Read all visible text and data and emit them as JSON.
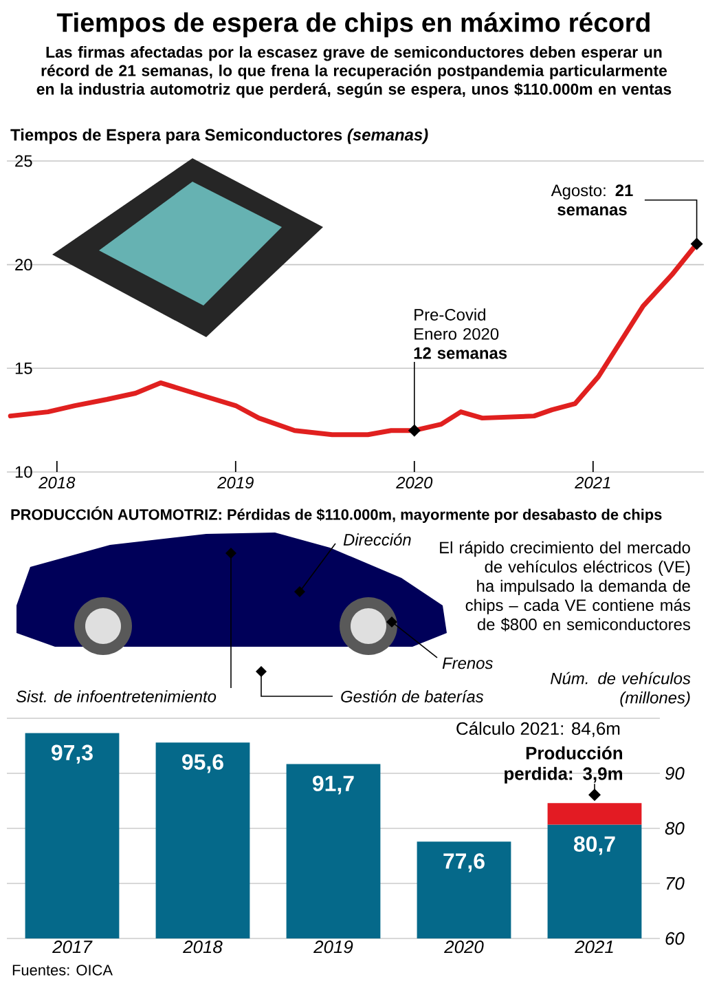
{
  "chart_data": [
    {
      "type": "other",
      "title": "Tiempos de espera de chips en máximo récord",
      "subtitle": "Las firmas afectadas por la escasez grave de semiconductores deben esperar un récord de 21 semanas, lo que frena la recuperación postpandemia particularmente en la industria automotriz que perderá, según se espera, unos $110.000m en ventas"
    },
    {
      "type": "line",
      "title": "Tiempos de Espera para Semiconductores *(semanas)*",
      "x": [
        2017.74,
        2017.95,
        2018.1,
        2018.28,
        2018.44,
        2018.58,
        2018.77,
        2019.0,
        2019.13,
        2019.33,
        2019.54,
        2019.74,
        2019.87,
        2020.0,
        2020.15,
        2020.26,
        2020.38,
        2020.67,
        2020.77,
        2020.9,
        2021.03,
        2021.28,
        2021.44,
        2021.58
      ],
      "values": [
        12.7,
        12.9,
        13.2,
        13.5,
        13.8,
        14.3,
        13.8,
        13.2,
        12.6,
        12.0,
        11.8,
        11.8,
        12.0,
        12,
        12.3,
        12.9,
        12.6,
        12.7,
        13.0,
        13.3,
        14.6,
        18.0,
        19.5,
        21
      ],
      "color": "#e0201f",
      "xlim": [
        2017.72,
        2021.62
      ],
      "ylim": [
        10,
        25
      ],
      "xticks": [
        2018,
        2019,
        2020,
        2021
      ],
      "yticks": [
        10,
        15,
        20,
        25
      ],
      "grid": "y",
      "annotations": [
        {
          "text": "Pre-Covid Enero 2020 **12 semanas**",
          "x": 2020.0,
          "y": 12
        },
        {
          "text": "Agosto: **21 semanas**",
          "x": 2021.58,
          "y": 21
        }
      ]
    },
    {
      "type": "bar",
      "title": "PRODUCCIÓN AUTOMOTRIZ: Pérdidas de $110.000m, mayormente por desabasto de chips",
      "ylabel": "Núm. de vehículos (millones)",
      "categories": [
        "2017",
        "2018",
        "2019",
        "2020",
        "2021"
      ],
      "series": [
        {
          "color": "#05698a",
          "values": [
            97.3,
            95.6,
            91.7,
            77.6,
            80.7
          ],
          "value_labels": [
            "97,3",
            "95,6",
            "91,7",
            "77,6",
            "80,7"
          ]
        },
        {
          "color": "#e31b23",
          "values": [
            null,
            null,
            null,
            null,
            3.9
          ],
          "base": [
            null,
            null,
            null,
            null,
            80.7
          ]
        }
      ],
      "ylim": [
        60,
        100
      ],
      "yticks": [
        60,
        70,
        80,
        90,
        {
          "value": 100,
          "label": null
        }
      ],
      "grid": "y",
      "annotations": [
        "Cálculo 2021: 84,6m",
        {
          "text": "Producción perdida: 3,9m",
          "x": "2021",
          "y": 84.6
        },
        "Dirección",
        "Frenos",
        "Sist. de infoentretenimiento",
        "Gestión de baterías",
        "El rápido crecimiento del mercado de vehículos eléctricos (VE) ha impulsado la demanda de chips – cada VE contiene más de $800 en semiconductores",
        "Fuentes: OICA"
      ]
    }
  ]
}
